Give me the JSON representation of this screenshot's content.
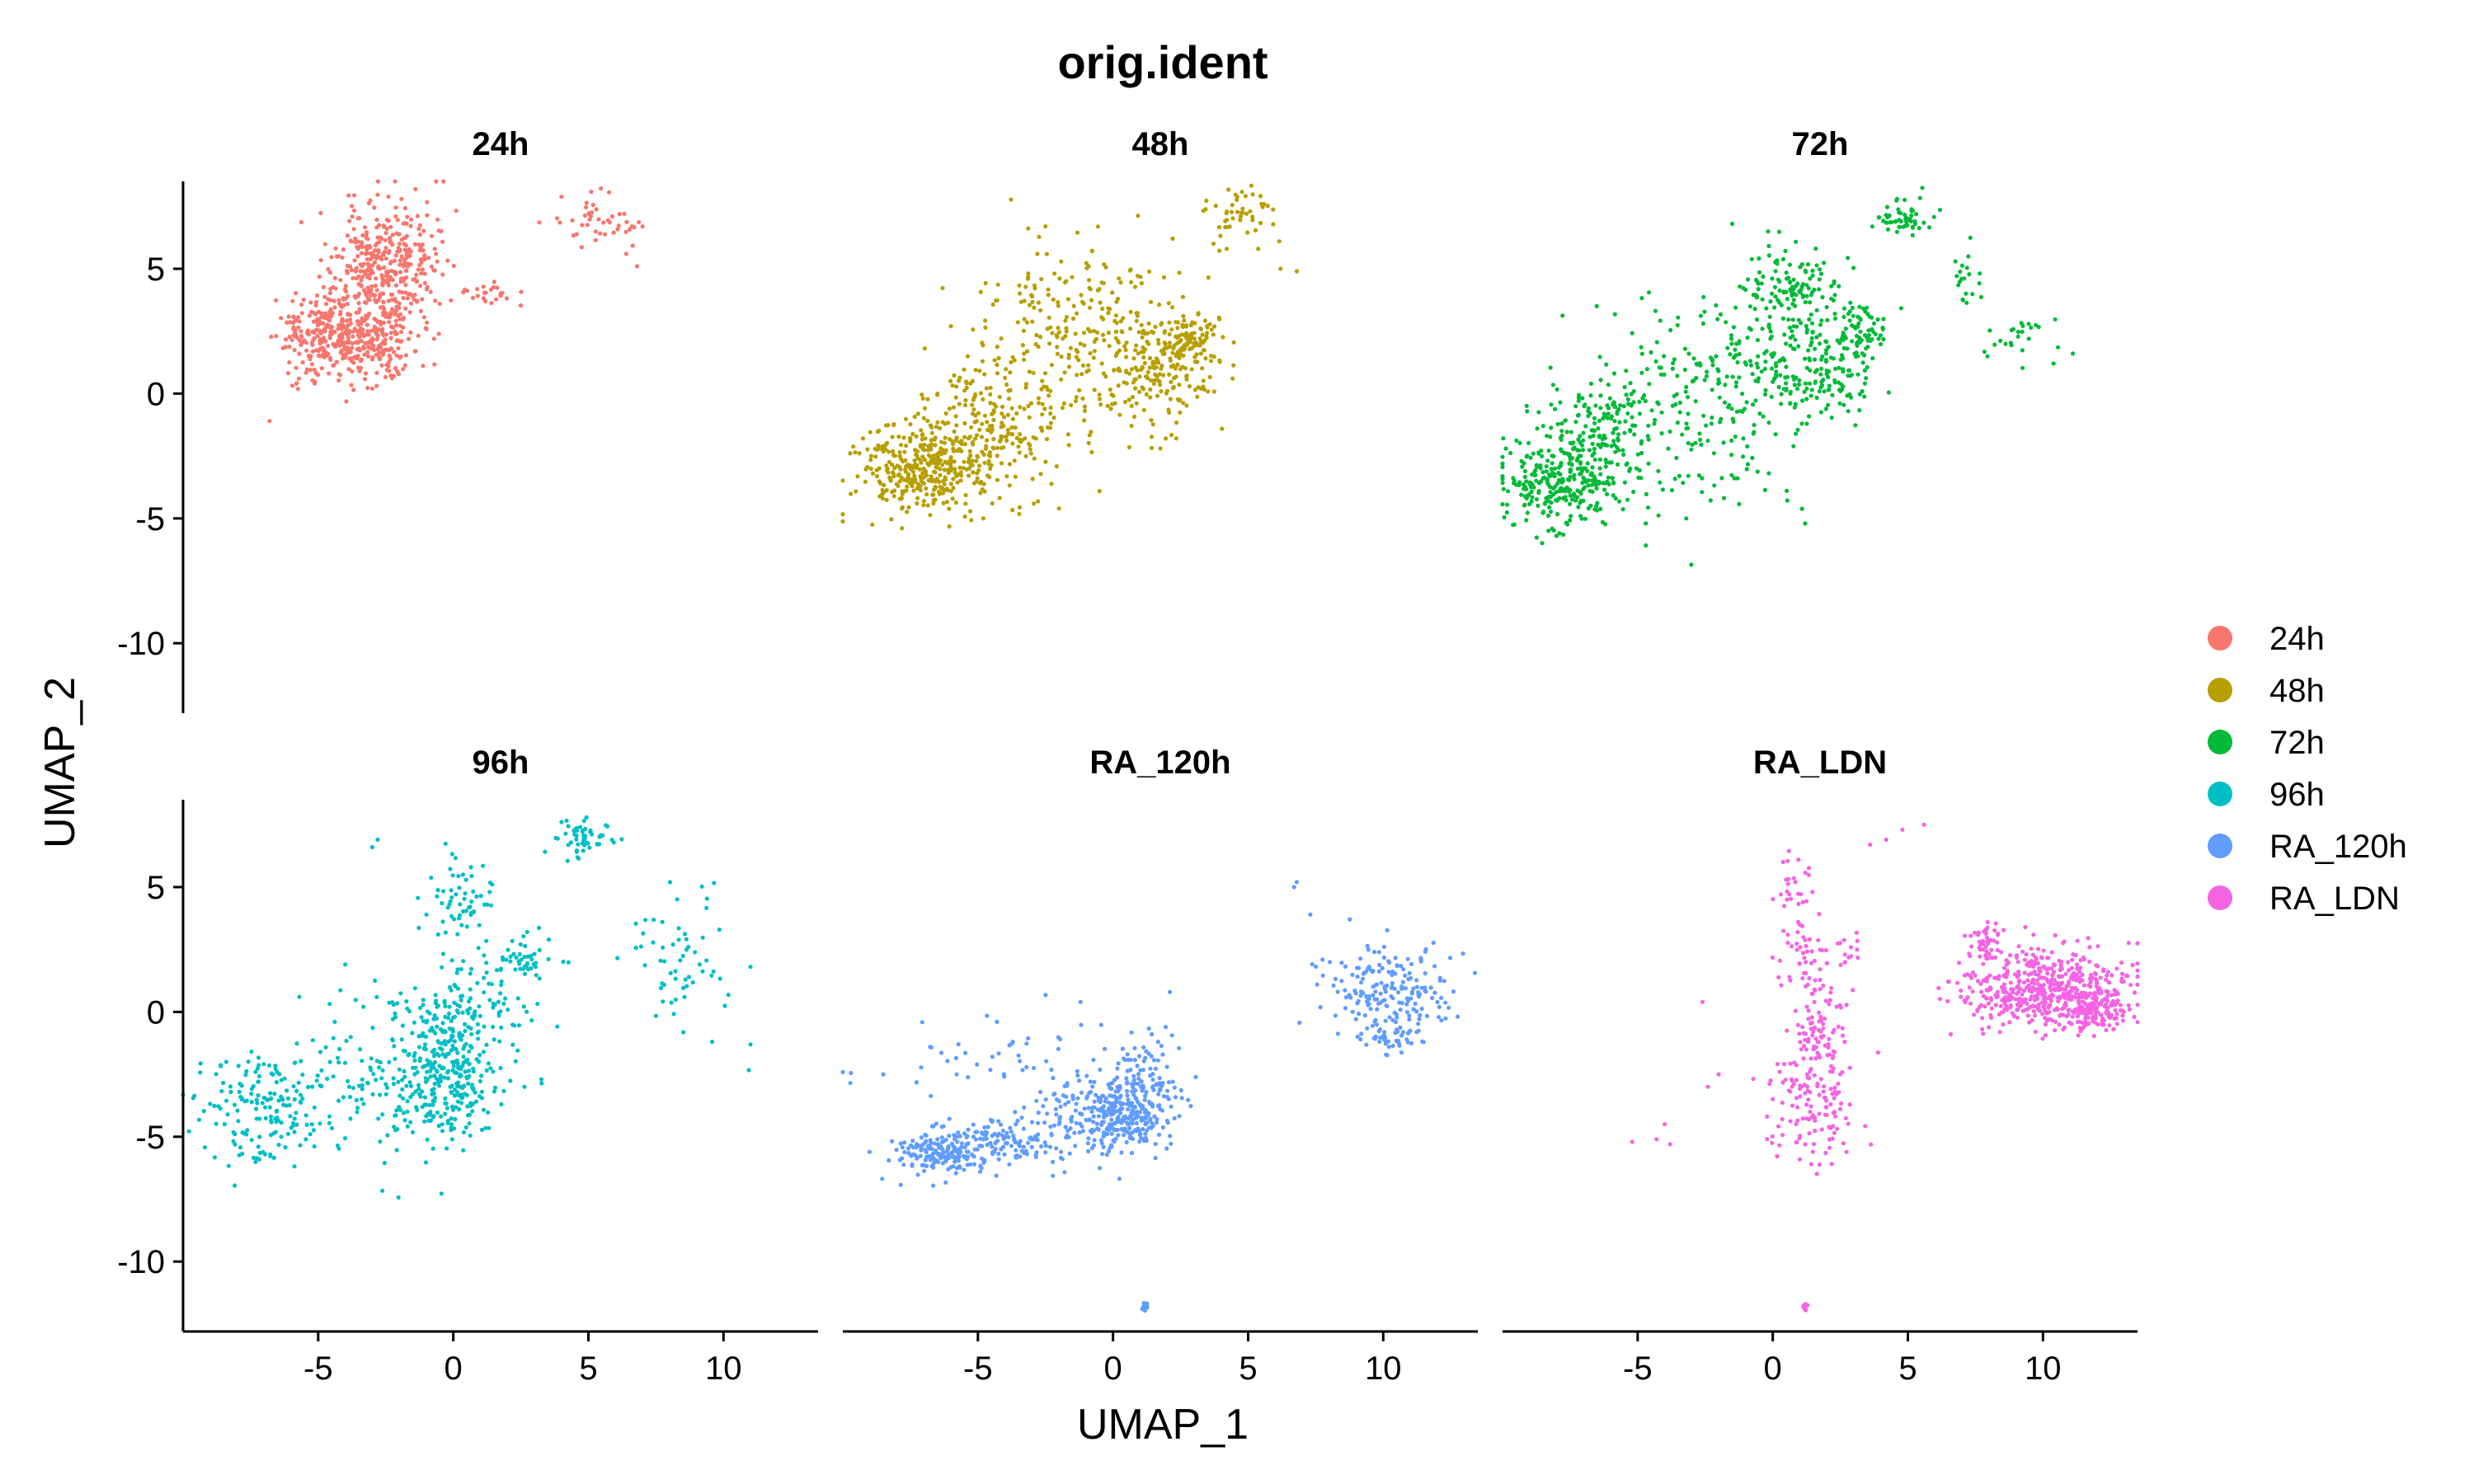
{
  "chart_data": {
    "type": "scatter",
    "title": "orig.ident",
    "xlabel": "UMAP_1",
    "ylabel": "UMAP_2",
    "xlim": [
      -10,
      13.5
    ],
    "ylim": [
      -12.8,
      8.5
    ],
    "x_ticks": [
      -5,
      0,
      5,
      10
    ],
    "y_ticks": [
      5,
      0,
      -5,
      -10
    ],
    "grid": false,
    "legend_position": "right",
    "facets": [
      {
        "name": "24h",
        "color": "#F8766D",
        "seed": 11,
        "clusters": [
          {
            "cx": -2.5,
            "cy": 5.0,
            "sx": 0.9,
            "sy": 1.3,
            "n": 380
          },
          {
            "cx": -4.5,
            "cy": 2.5,
            "sx": 1.0,
            "sy": 0.9,
            "n": 320
          },
          {
            "cx": -2.8,
            "cy": 2.0,
            "sx": 0.8,
            "sy": 0.7,
            "n": 140
          },
          {
            "cx": 1.3,
            "cy": 4.0,
            "sx": 0.7,
            "sy": 0.2,
            "n": 24
          },
          {
            "cx": 5.2,
            "cy": 7.0,
            "sx": 0.9,
            "sy": 0.5,
            "n": 45
          }
        ],
        "points": [
          [
            -6.8,
            -1.1
          ],
          [
            6.8,
            5.1
          ],
          [
            -5.8,
            0.4
          ],
          [
            -3.0,
            0.2
          ],
          [
            6.4,
            5.6
          ],
          [
            -0.5,
            3.6
          ]
        ]
      },
      {
        "name": "48h",
        "color": "#B79F00",
        "seed": 23,
        "clusters": [
          {
            "cx": -7.2,
            "cy": -3.1,
            "sx": 1.1,
            "sy": 0.9,
            "n": 330
          },
          {
            "cx": -4.5,
            "cy": -1.2,
            "sx": 1.4,
            "sy": 1.4,
            "n": 260
          },
          {
            "cx": -1.5,
            "cy": 3.0,
            "sx": 1.8,
            "sy": 1.6,
            "n": 190
          },
          {
            "cx": 1.5,
            "cy": 0.8,
            "sx": 1.2,
            "sy": 1.2,
            "n": 190
          },
          {
            "cx": 2.8,
            "cy": 2.2,
            "sx": 0.6,
            "sy": 0.6,
            "n": 90
          },
          {
            "cx": 4.8,
            "cy": 7.1,
            "sx": 0.7,
            "sy": 0.6,
            "n": 50
          }
        ],
        "points": [
          [
            6.8,
            4.9
          ],
          [
            6.2,
            5.0
          ],
          [
            -2.0,
            -4.6
          ],
          [
            -4.8,
            -5.0
          ],
          [
            -6.0,
            2.7
          ],
          [
            -2.5,
            6.7
          ]
        ]
      },
      {
        "name": "72h",
        "color": "#00BA38",
        "seed": 37,
        "clusters": [
          {
            "cx": -7.8,
            "cy": -3.5,
            "sx": 1.1,
            "sy": 0.9,
            "n": 280
          },
          {
            "cx": -6.5,
            "cy": -1.5,
            "sx": 0.9,
            "sy": 1.0,
            "n": 110
          },
          {
            "cx": -3.5,
            "cy": -1.0,
            "sx": 2.0,
            "sy": 2.0,
            "n": 210
          },
          {
            "cx": 0.5,
            "cy": 4.5,
            "sx": 1.0,
            "sy": 0.9,
            "n": 110
          },
          {
            "cx": -0.5,
            "cy": 1.5,
            "sx": 1.4,
            "sy": 1.3,
            "n": 140
          },
          {
            "cx": 2.0,
            "cy": 0.8,
            "sx": 1.0,
            "sy": 1.0,
            "n": 110
          },
          {
            "cx": 3.2,
            "cy": 2.5,
            "sx": 0.6,
            "sy": 0.6,
            "n": 70
          },
          {
            "cx": 4.8,
            "cy": 7.0,
            "sx": 0.6,
            "sy": 0.4,
            "n": 55
          },
          {
            "cx": 7.2,
            "cy": 4.6,
            "sx": 0.35,
            "sy": 0.55,
            "n": 20
          },
          {
            "cx": 9.2,
            "cy": 2.3,
            "sx": 0.8,
            "sy": 0.7,
            "n": 26
          }
        ],
        "points": [
          [
            -8.3,
            -5.5
          ],
          [
            -1.5,
            6.8
          ],
          [
            1.2,
            -5.2
          ],
          [
            -3.2,
            -5.0
          ]
        ]
      },
      {
        "name": "96h",
        "color": "#00BFC4",
        "seed": 53,
        "clusters": [
          {
            "cx": -7.0,
            "cy": -3.8,
            "sx": 1.2,
            "sy": 1.1,
            "n": 170
          },
          {
            "cx": -0.3,
            "cy": -2.5,
            "sx": 0.9,
            "sy": 1.4,
            "n": 300
          },
          {
            "cx": -2.5,
            "cy": -2.5,
            "sx": 1.6,
            "sy": 1.6,
            "n": 110
          },
          {
            "cx": 0.8,
            "cy": 0.3,
            "sx": 1.2,
            "sy": 1.2,
            "n": 110
          },
          {
            "cx": 0.3,
            "cy": 4.5,
            "sx": 0.6,
            "sy": 1.0,
            "n": 60
          },
          {
            "cx": 2.8,
            "cy": 2.0,
            "sx": 0.6,
            "sy": 0.5,
            "n": 40
          },
          {
            "cx": 4.8,
            "cy": 6.9,
            "sx": 0.6,
            "sy": 0.4,
            "n": 55
          },
          {
            "cx": 8.5,
            "cy": 2.0,
            "sx": 1.0,
            "sy": 1.4,
            "n": 60
          }
        ],
        "points": [
          [
            -3.0,
            6.6
          ],
          [
            -2.8,
            6.9
          ],
          [
            -5.7,
            0.6
          ],
          [
            -4.0,
            1.9
          ],
          [
            11.0,
            -1.3
          ],
          [
            -8.4,
            -2.0
          ]
        ]
      },
      {
        "name": "RA_120h",
        "color": "#619CFF",
        "seed": 71,
        "clusters": [
          {
            "cx": -6.3,
            "cy": -5.6,
            "sx": 0.9,
            "sy": 0.45,
            "n": 180
          },
          {
            "cx": -3.8,
            "cy": -5.1,
            "sx": 1.0,
            "sy": 0.45,
            "n": 110
          },
          {
            "cx": -1.6,
            "cy": -4.2,
            "sx": 0.7,
            "sy": 0.9,
            "n": 60
          },
          {
            "cx": 0.5,
            "cy": -4.2,
            "sx": 0.9,
            "sy": 0.8,
            "n": 260
          },
          {
            "cx": 1.5,
            "cy": -2.8,
            "sx": 0.6,
            "sy": 0.9,
            "n": 80
          },
          {
            "cx": -3.5,
            "cy": -2.0,
            "sx": 2.5,
            "sy": 0.9,
            "n": 60
          },
          {
            "cx": 10.2,
            "cy": 0.8,
            "sx": 1.1,
            "sy": 0.9,
            "n": 190
          },
          {
            "cx": 10.3,
            "cy": -1.0,
            "sx": 0.6,
            "sy": 0.3,
            "n": 40
          },
          {
            "cx": 1.2,
            "cy": -11.8,
            "sx": 0.05,
            "sy": 0.07,
            "n": 12
          }
        ],
        "points": [
          [
            6.8,
            5.2
          ],
          [
            6.7,
            5.0
          ],
          [
            7.3,
            3.9
          ],
          [
            -1.2,
            0.4
          ],
          [
            2.1,
            0.8
          ],
          [
            -8.5,
            -2.5
          ]
        ]
      },
      {
        "name": "RA_LDN",
        "color": "#F564E3",
        "seed": 97,
        "clusters": [
          {
            "cx": 10.0,
            "cy": 0.9,
            "sx": 1.5,
            "sy": 0.8,
            "n": 480
          },
          {
            "cx": 12.0,
            "cy": 0.2,
            "sx": 0.7,
            "sy": 0.5,
            "n": 160
          },
          {
            "cx": 7.8,
            "cy": 2.8,
            "sx": 0.4,
            "sy": 0.4,
            "n": 40
          },
          {
            "cx": 1.5,
            "cy": -3.5,
            "sx": 0.9,
            "sy": 1.3,
            "n": 130
          },
          {
            "cx": 1.8,
            "cy": -0.5,
            "sx": 0.5,
            "sy": 1.0,
            "n": 80
          },
          {
            "cx": 1.2,
            "cy": 2.0,
            "sx": 0.6,
            "sy": 0.8,
            "n": 40
          },
          {
            "cx": 0.8,
            "cy": 4.8,
            "sx": 0.4,
            "sy": 0.8,
            "n": 30
          },
          {
            "cx": 2.8,
            "cy": 2.3,
            "sx": 0.5,
            "sy": 0.4,
            "n": 16
          },
          {
            "cx": 1.2,
            "cy": -11.8,
            "sx": 0.05,
            "sy": 0.07,
            "n": 12
          }
        ],
        "points": [
          [
            5.6,
            7.5
          ],
          [
            4.8,
            7.3
          ],
          [
            4.2,
            6.9
          ],
          [
            3.6,
            6.7
          ],
          [
            -2.6,
            0.4
          ],
          [
            -5.2,
            -5.2
          ],
          [
            -4.3,
            -5.1
          ],
          [
            -4.0,
            -4.5
          ],
          [
            -3.8,
            -5.3
          ],
          [
            -2.4,
            -3.0
          ],
          [
            -2.0,
            -2.5
          ]
        ]
      }
    ],
    "legend": [
      {
        "label": "24h",
        "color": "#F8766D"
      },
      {
        "label": "48h",
        "color": "#B79F00"
      },
      {
        "label": "72h",
        "color": "#00BA38"
      },
      {
        "label": "96h",
        "color": "#00BFC4"
      },
      {
        "label": "RA_120h",
        "color": "#619CFF"
      },
      {
        "label": "RA_LDN",
        "color": "#F564E3"
      }
    ]
  }
}
